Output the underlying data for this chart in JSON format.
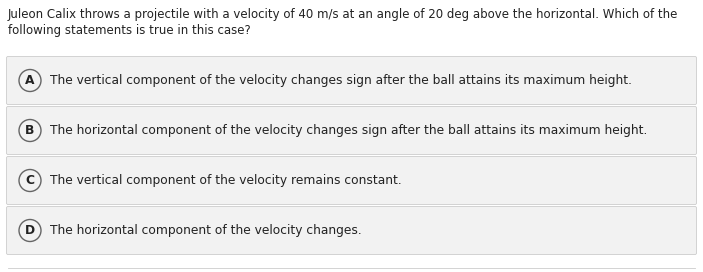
{
  "question_line1": "Juleon Calix throws a projectile with a velocity of 40 m/s at an angle of 20 deg above the horizontal. Which of the",
  "question_line2": "following statements is true in this case?",
  "options": [
    {
      "label": "A",
      "text": "The vertical component of the velocity changes sign after the ball attains its maximum height."
    },
    {
      "label": "B",
      "text": "The horizontal component of the velocity changes sign after the ball attains its maximum height."
    },
    {
      "label": "C",
      "text": "The vertical component of the velocity remains constant."
    },
    {
      "label": "D",
      "text": "The horizontal component of the velocity changes."
    }
  ],
  "fig_bg_color": "#ffffff",
  "option_bg_color": "#f2f2f2",
  "option_border_color": "#cccccc",
  "text_color": "#222222",
  "circle_edge_color": "#666666",
  "circle_face_color": "#f2f2f2",
  "question_fontsize": 8.5,
  "option_fontsize": 8.8,
  "label_fontsize": 8.8,
  "fig_width": 7.03,
  "fig_height": 2.72,
  "dpi": 100
}
